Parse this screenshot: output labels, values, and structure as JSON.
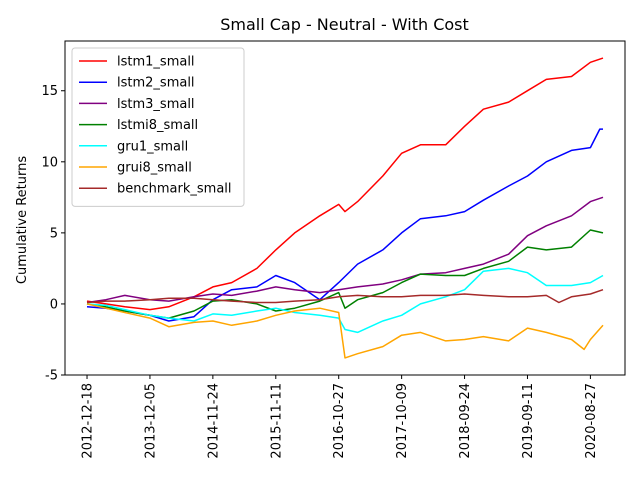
{
  "chart_data": {
    "type": "line",
    "title": "Small Cap - Neutral - With Cost",
    "xlabel": "",
    "ylabel": "Cumulative Returns",
    "x_tick_labels": [
      "2012-12-18",
      "2013-12-05",
      "2014-11-24",
      "2015-11-11",
      "2016-10-27",
      "2017-10-09",
      "2018-09-24",
      "2019-09-11",
      "2020-08-27"
    ],
    "y_ticks": [
      -5,
      0,
      5,
      10,
      15
    ],
    "ylim": [
      -5,
      18.5
    ],
    "xlim": [
      -0.35,
      8.55
    ],
    "grid": false,
    "legend_position": "top-left",
    "series": [
      {
        "name": "lstm1_small",
        "color": "#ff0000",
        "x": [
          0,
          0.3,
          0.6,
          1.0,
          1.3,
          1.7,
          2.0,
          2.3,
          2.7,
          3.0,
          3.3,
          3.7,
          4.0,
          4.1,
          4.3,
          4.7,
          5.0,
          5.3,
          5.7,
          6.0,
          6.3,
          6.7,
          7.0,
          7.3,
          7.7,
          8.0,
          8.2
        ],
        "y": [
          0.2,
          0.0,
          -0.2,
          -0.4,
          -0.2,
          0.5,
          1.2,
          1.5,
          2.5,
          3.8,
          5.0,
          6.2,
          7.0,
          6.5,
          7.2,
          9.0,
          10.6,
          11.2,
          11.2,
          12.5,
          13.7,
          14.2,
          15.0,
          15.8,
          16.0,
          17.0,
          17.3
        ]
      },
      {
        "name": "lstm2_small",
        "color": "#0000ff",
        "x": [
          0,
          0.3,
          0.6,
          1.0,
          1.3,
          1.7,
          2.0,
          2.3,
          2.7,
          3.0,
          3.3,
          3.7,
          4.0,
          4.3,
          4.7,
          5.0,
          5.3,
          5.7,
          6.0,
          6.3,
          6.7,
          7.0,
          7.3,
          7.7,
          8.0,
          8.15,
          8.2
        ],
        "y": [
          -0.2,
          -0.3,
          -0.5,
          -0.8,
          -1.2,
          -0.9,
          0.3,
          1.0,
          1.2,
          2.0,
          1.5,
          0.3,
          1.5,
          2.8,
          3.8,
          5.0,
          6.0,
          6.2,
          6.5,
          7.3,
          8.3,
          9.0,
          10.0,
          10.8,
          11.0,
          12.3,
          12.3
        ]
      },
      {
        "name": "lstm3_small",
        "color": "#800080",
        "x": [
          0,
          0.3,
          0.6,
          1.0,
          1.3,
          1.7,
          2.0,
          2.3,
          2.7,
          3.0,
          3.3,
          3.7,
          4.0,
          4.3,
          4.7,
          5.0,
          5.3,
          5.7,
          6.0,
          6.3,
          6.7,
          7.0,
          7.3,
          7.7,
          8.0,
          8.2
        ],
        "y": [
          0.1,
          0.3,
          0.6,
          0.3,
          0.2,
          0.5,
          0.7,
          0.6,
          0.9,
          1.2,
          1.0,
          0.8,
          1.0,
          1.2,
          1.4,
          1.7,
          2.1,
          2.2,
          2.5,
          2.8,
          3.5,
          4.8,
          5.5,
          6.2,
          7.2,
          7.5
        ]
      },
      {
        "name": "lstmi8_small",
        "color": "#008000",
        "x": [
          0,
          0.3,
          0.6,
          1.0,
          1.3,
          1.7,
          2.0,
          2.3,
          2.7,
          3.0,
          3.3,
          3.7,
          4.0,
          4.1,
          4.3,
          4.7,
          5.0,
          5.3,
          5.7,
          6.0,
          6.3,
          6.7,
          7.0,
          7.3,
          7.7,
          8.0,
          8.2
        ],
        "y": [
          0.0,
          -0.2,
          -0.5,
          -0.8,
          -1.0,
          -0.5,
          0.2,
          0.3,
          0.0,
          -0.5,
          -0.3,
          0.2,
          0.8,
          -0.3,
          0.3,
          0.8,
          1.5,
          2.1,
          2.0,
          2.0,
          2.5,
          3.0,
          4.0,
          3.8,
          4.0,
          5.2,
          5.0
        ]
      },
      {
        "name": "gru1_small",
        "color": "#00ffff",
        "x": [
          0,
          0.3,
          0.6,
          1.0,
          1.3,
          1.7,
          2.0,
          2.3,
          2.7,
          3.0,
          3.3,
          3.7,
          4.0,
          4.1,
          4.3,
          4.7,
          5.0,
          5.3,
          5.7,
          6.0,
          6.3,
          6.7,
          7.0,
          7.3,
          7.7,
          8.0,
          8.2
        ],
        "y": [
          0.0,
          -0.1,
          -0.4,
          -0.8,
          -1.0,
          -1.2,
          -0.7,
          -0.8,
          -0.5,
          -0.3,
          -0.6,
          -0.8,
          -1.0,
          -1.8,
          -2.0,
          -1.2,
          -0.8,
          0.0,
          0.5,
          1.0,
          2.3,
          2.5,
          2.2,
          1.3,
          1.3,
          1.5,
          2.0
        ]
      },
      {
        "name": "grui8_small",
        "color": "#ffa500",
        "x": [
          0,
          0.3,
          0.6,
          1.0,
          1.3,
          1.7,
          2.0,
          2.3,
          2.7,
          3.0,
          3.3,
          3.7,
          4.0,
          4.1,
          4.3,
          4.7,
          5.0,
          5.3,
          5.7,
          6.0,
          6.3,
          6.7,
          7.0,
          7.3,
          7.7,
          7.9,
          8.0,
          8.2
        ],
        "y": [
          0.0,
          -0.3,
          -0.6,
          -1.0,
          -1.6,
          -1.3,
          -1.2,
          -1.5,
          -1.2,
          -0.8,
          -0.5,
          -0.3,
          -0.6,
          -3.8,
          -3.5,
          -3.0,
          -2.2,
          -2.0,
          -2.6,
          -2.5,
          -2.3,
          -2.6,
          -1.7,
          -2.0,
          -2.5,
          -3.2,
          -2.5,
          -1.5
        ]
      },
      {
        "name": "benchmark_small",
        "color": "#a52a2a",
        "x": [
          0,
          0.3,
          0.6,
          1.0,
          1.3,
          1.7,
          2.0,
          2.3,
          2.7,
          3.0,
          3.3,
          3.7,
          4.0,
          4.3,
          4.7,
          5.0,
          5.3,
          5.7,
          6.0,
          6.3,
          6.7,
          7.0,
          7.3,
          7.5,
          7.7,
          8.0,
          8.2
        ],
        "y": [
          0.1,
          0.2,
          0.2,
          0.3,
          0.4,
          0.4,
          0.3,
          0.2,
          0.1,
          0.1,
          0.2,
          0.3,
          0.5,
          0.6,
          0.5,
          0.5,
          0.6,
          0.6,
          0.7,
          0.6,
          0.5,
          0.5,
          0.6,
          0.1,
          0.5,
          0.7,
          1.0
        ]
      }
    ]
  }
}
